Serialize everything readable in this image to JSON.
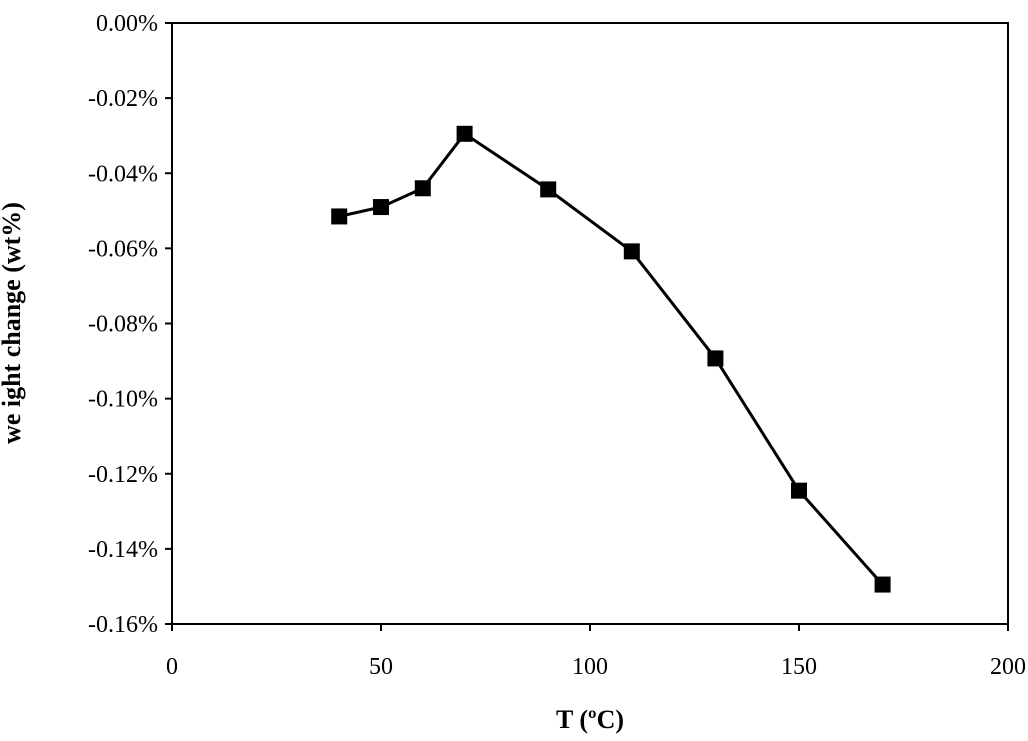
{
  "chart_data": {
    "type": "line",
    "title": "",
    "xlabel": "T (ºC)",
    "ylabel": "we ight change (wt%)",
    "xlim": [
      0,
      200
    ],
    "ylim": [
      -0.16,
      0.0
    ],
    "x_ticks": [
      0,
      50,
      100,
      150,
      200
    ],
    "x_tick_labels": [
      "0",
      "50",
      "100",
      "150",
      "200"
    ],
    "y_ticks": [
      0.0,
      -0.02,
      -0.04,
      -0.06,
      -0.08,
      -0.1,
      -0.12,
      -0.14,
      -0.16
    ],
    "y_tick_labels": [
      "0.00%",
      "-0.02%",
      "-0.04%",
      "-0.06%",
      "-0.08%",
      "-0.10%",
      "-0.12%",
      "-0.14%",
      "-0.16%"
    ],
    "grid": false,
    "legend": "none",
    "marker": "square",
    "line_color": "#000000",
    "series": [
      {
        "x": [
          40,
          50,
          60,
          70,
          90,
          110,
          130,
          150,
          170
        ],
        "y": [
          -0.0515,
          -0.049,
          -0.044,
          -0.0295,
          -0.0443,
          -0.0608,
          -0.0893,
          -0.1245,
          -0.1495
        ]
      }
    ]
  }
}
